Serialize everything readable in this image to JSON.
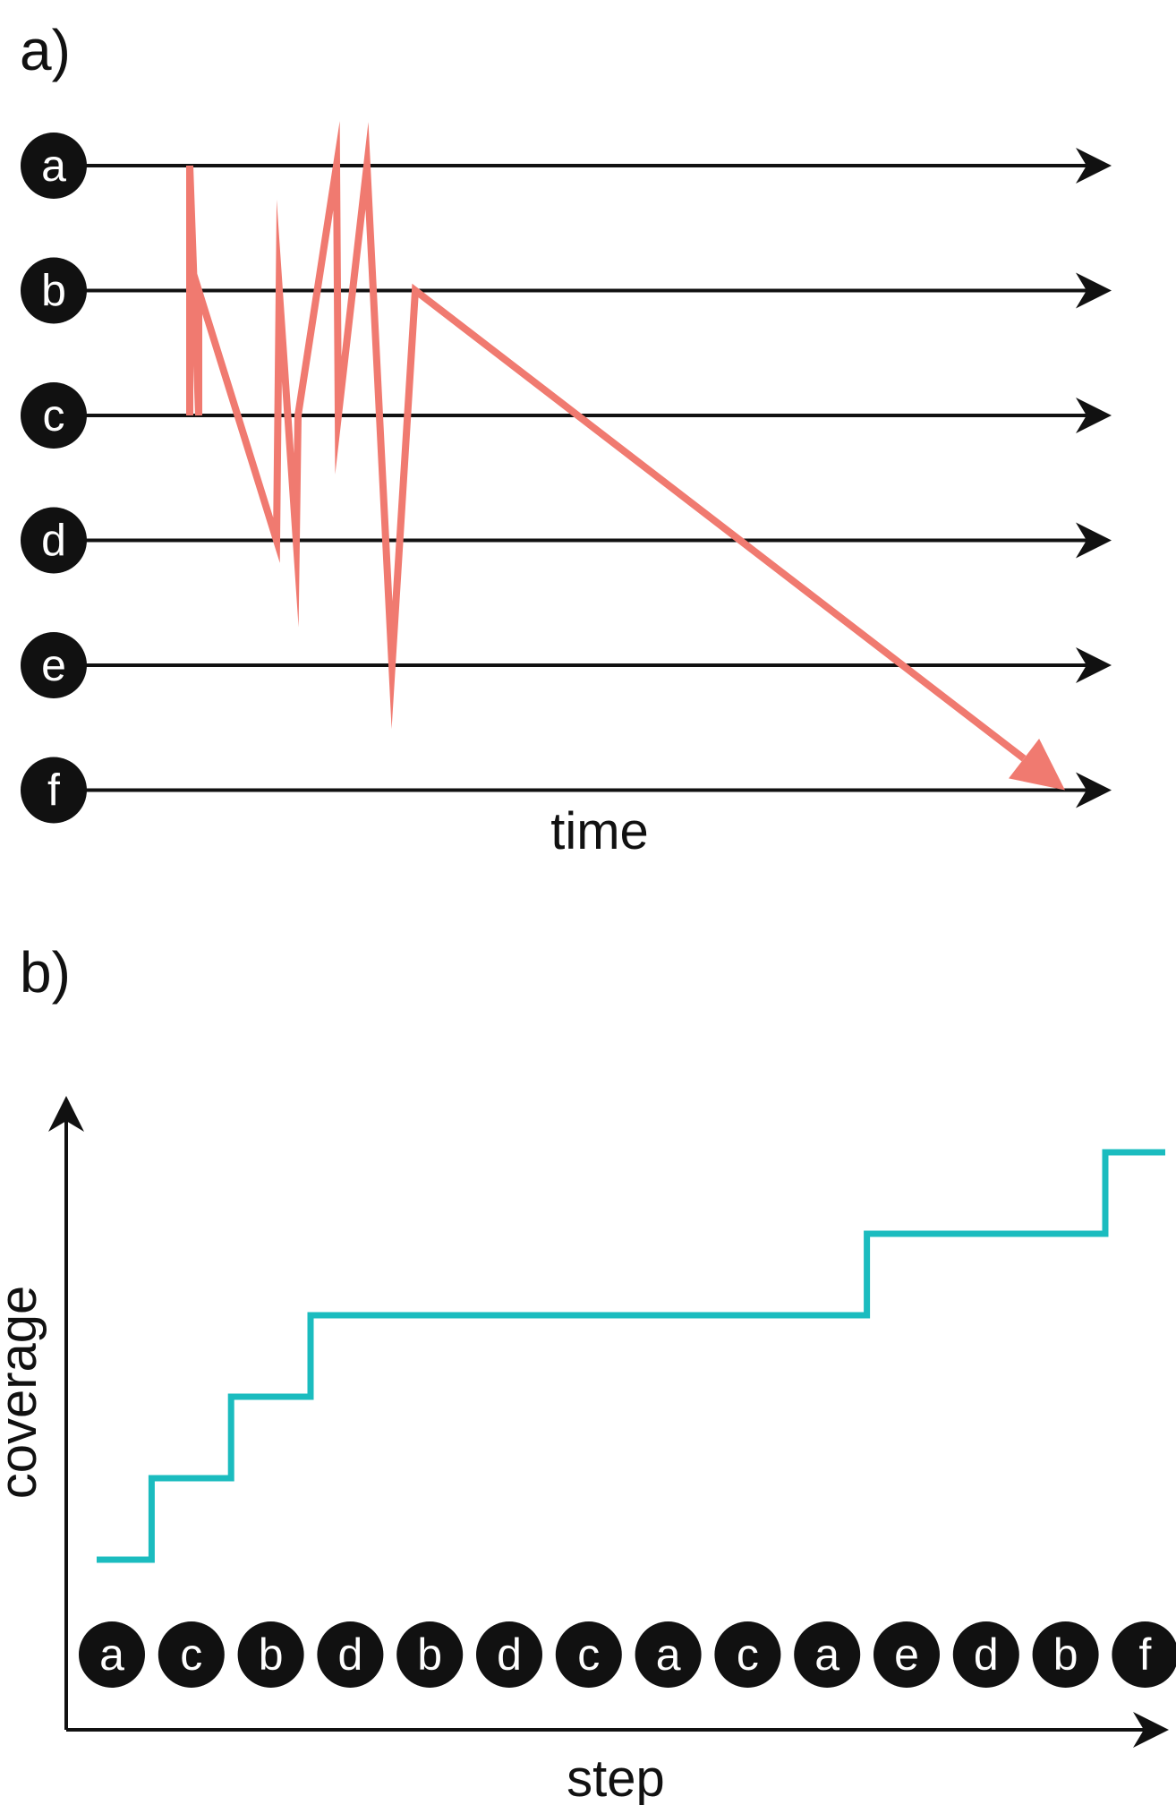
{
  "panel_a": {
    "label": "a)",
    "axis_label": "time",
    "rows": [
      "a",
      "b",
      "c",
      "d",
      "e",
      "f"
    ],
    "path_color": "#f07a70",
    "trajectory": [
      "c",
      "a",
      "c",
      "b",
      "d",
      "b",
      "d",
      "c",
      "a",
      "c",
      "a",
      "e",
      "b",
      "f"
    ]
  },
  "panel_b": {
    "label": "b)",
    "x_label": "step",
    "y_label": "coverage",
    "line_color": "#1bbcbf",
    "steps": [
      "a",
      "c",
      "b",
      "d",
      "b",
      "d",
      "c",
      "a",
      "c",
      "a",
      "e",
      "d",
      "b",
      "f"
    ],
    "coverage": [
      1,
      2,
      3,
      4,
      4,
      4,
      4,
      4,
      4,
      4,
      5,
      5,
      5,
      6
    ]
  }
}
